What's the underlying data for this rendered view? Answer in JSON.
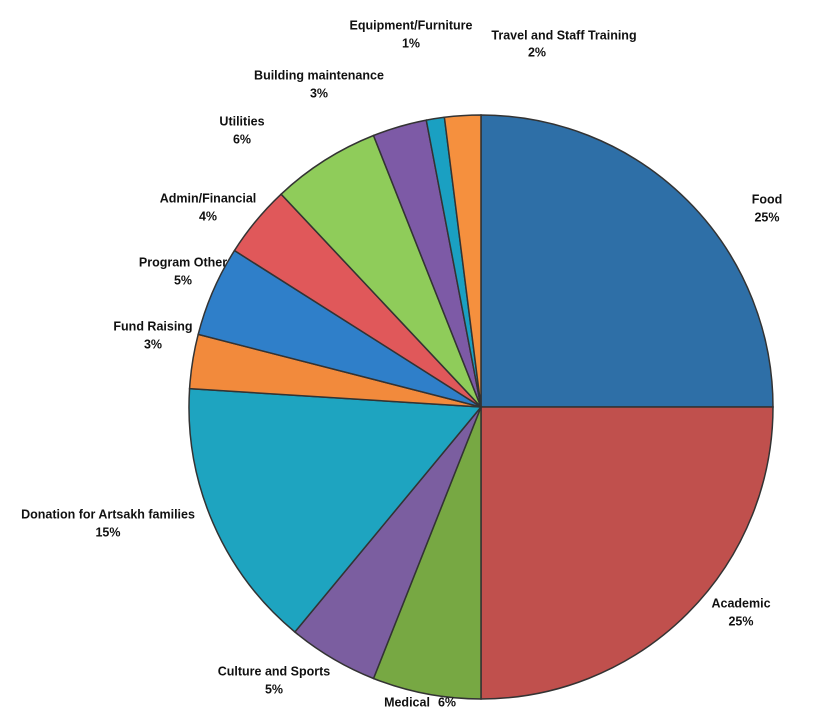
{
  "chart_data": {
    "type": "pie",
    "categories": [
      "Food",
      "Academic",
      "Medical",
      "Culture and Sports",
      "Donation for Artsakh families",
      "Fund Raising",
      "Program Other",
      "Admin/Financial",
      "Utilities",
      "Building maintenance",
      "Equipment/Furniture",
      "Travel and Staff Training"
    ],
    "values": [
      25,
      25,
      6,
      5,
      15,
      3,
      5,
      4,
      6,
      3,
      1,
      2
    ],
    "value_labels": [
      "25%",
      "25%",
      "6%",
      "5%",
      "15%",
      "3%",
      "5%",
      "4%",
      "6%",
      "3%",
      "1%",
      "2%"
    ],
    "colors": [
      "#2e6fa7",
      "#c0504d",
      "#77a843",
      "#7b5ea0",
      "#1ea4c0",
      "#f28a3c",
      "#2f7fc9",
      "#e0585a",
      "#8fcc5a",
      "#7d5aa6",
      "#1aa0c2",
      "#f5903e"
    ]
  }
}
